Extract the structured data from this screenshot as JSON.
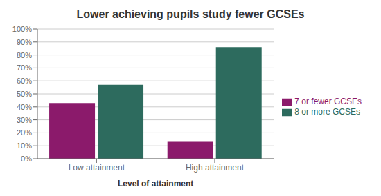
{
  "chart_data": {
    "type": "bar",
    "title": "Lower achieving pupils study fewer GCSEs",
    "xlabel": "Level of attainment",
    "categories": [
      "Low attainment",
      "High attainment"
    ],
    "series": [
      {
        "name": "7 or fewer GCSEs",
        "color": "#8B1A6B",
        "values": [
          43,
          13
        ]
      },
      {
        "name": "8 or more GCSEs",
        "color": "#2d6b5e",
        "values": [
          57,
          86
        ]
      }
    ],
    "ylim": [
      0,
      100
    ],
    "yticks": [
      {
        "value": 0,
        "label": "0%"
      },
      {
        "value": 10,
        "label": "10%"
      },
      {
        "value": 20,
        "label": "20%"
      },
      {
        "value": 30,
        "label": "30%"
      },
      {
        "value": 40,
        "label": "40%"
      },
      {
        "value": 50,
        "label": "50%"
      },
      {
        "value": 60,
        "label": "60%"
      },
      {
        "value": 70,
        "label": "70%"
      },
      {
        "value": 80,
        "label": "80%"
      },
      {
        "value": 90,
        "label": "90%"
      },
      {
        "value": 100,
        "label": "100%"
      }
    ],
    "grid": true,
    "legend": "right"
  }
}
